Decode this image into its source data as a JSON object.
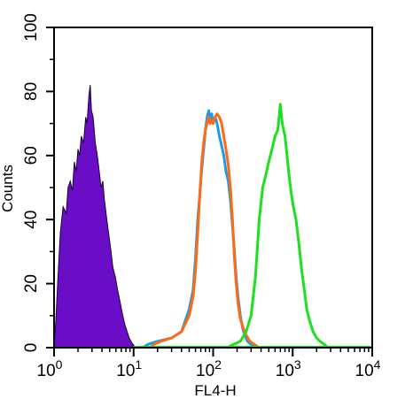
{
  "chart_data": {
    "type": "histogram",
    "x_scale": "log",
    "xlim": [
      1,
      10000
    ],
    "ylim": [
      0,
      100
    ],
    "xlabel": "FL4-H",
    "ylabel": "Counts",
    "x_ticks": [
      {
        "value": 1,
        "base": "10",
        "exp": "0"
      },
      {
        "value": 10,
        "base": "10",
        "exp": "1"
      },
      {
        "value": 100,
        "base": "10",
        "exp": "2"
      },
      {
        "value": 1000,
        "base": "10",
        "exp": "3"
      },
      {
        "value": 10000,
        "base": "10",
        "exp": "4"
      }
    ],
    "y_ticks": [
      {
        "value": 0,
        "label": "0"
      },
      {
        "value": 20,
        "label": "20"
      },
      {
        "value": 40,
        "label": "40"
      },
      {
        "value": 60,
        "label": "60"
      },
      {
        "value": 80,
        "label": "80"
      },
      {
        "value": 100,
        "label": "100"
      }
    ],
    "grid": false,
    "legend": "none",
    "series": [
      {
        "color": "#6a0dc7",
        "fill": true,
        "points": [
          [
            1.0,
            0
          ],
          [
            1.05,
            8
          ],
          [
            1.12,
            22
          ],
          [
            1.2,
            36
          ],
          [
            1.3,
            44
          ],
          [
            1.42,
            42
          ],
          [
            1.5,
            50
          ],
          [
            1.6,
            52
          ],
          [
            1.7,
            49
          ],
          [
            1.8,
            58
          ],
          [
            1.9,
            55
          ],
          [
            2.0,
            62
          ],
          [
            2.1,
            60
          ],
          [
            2.2,
            66
          ],
          [
            2.35,
            64
          ],
          [
            2.5,
            72
          ],
          [
            2.6,
            70
          ],
          [
            2.75,
            79
          ],
          [
            2.85,
            82
          ],
          [
            2.95,
            74
          ],
          [
            3.1,
            72
          ],
          [
            3.3,
            64
          ],
          [
            3.5,
            60
          ],
          [
            3.7,
            55
          ],
          [
            3.9,
            50
          ],
          [
            4.1,
            52
          ],
          [
            4.3,
            46
          ],
          [
            4.6,
            40
          ],
          [
            4.9,
            35
          ],
          [
            5.2,
            30
          ],
          [
            5.5,
            25
          ],
          [
            5.9,
            22
          ],
          [
            6.3,
            18
          ],
          [
            6.8,
            14
          ],
          [
            7.3,
            10
          ],
          [
            7.8,
            7
          ],
          [
            8.3,
            5
          ],
          [
            8.8,
            3
          ],
          [
            9.5,
            1.5
          ],
          [
            10.2,
            0.5
          ],
          [
            11,
            0
          ]
        ]
      },
      {
        "color": "#1e9be6",
        "fill": false,
        "points": [
          [
            13,
            0
          ],
          [
            15,
            1
          ],
          [
            20,
            2
          ],
          [
            30,
            3
          ],
          [
            40,
            5
          ],
          [
            50,
            12
          ],
          [
            56,
            18
          ],
          [
            60,
            28
          ],
          [
            64,
            40
          ],
          [
            68,
            48
          ],
          [
            72,
            56
          ],
          [
            76,
            62
          ],
          [
            80,
            68
          ],
          [
            84,
            72
          ],
          [
            88,
            74
          ],
          [
            92,
            71
          ],
          [
            96,
            73
          ],
          [
            100,
            70
          ],
          [
            106,
            72
          ],
          [
            112,
            70
          ],
          [
            120,
            66
          ],
          [
            128,
            63
          ],
          [
            136,
            60
          ],
          [
            145,
            55
          ],
          [
            155,
            52
          ],
          [
            165,
            46
          ],
          [
            175,
            38
          ],
          [
            185,
            30
          ],
          [
            195,
            22
          ],
          [
            205,
            16
          ],
          [
            220,
            10
          ],
          [
            235,
            6
          ],
          [
            250,
            4
          ],
          [
            270,
            2
          ],
          [
            300,
            1
          ],
          [
            350,
            0
          ]
        ]
      },
      {
        "color": "#ff6a14",
        "fill": false,
        "points": [
          [
            16,
            0
          ],
          [
            18,
            1
          ],
          [
            22,
            2
          ],
          [
            30,
            3
          ],
          [
            40,
            5
          ],
          [
            50,
            10
          ],
          [
            56,
            16
          ],
          [
            60,
            24
          ],
          [
            64,
            36
          ],
          [
            68,
            48
          ],
          [
            72,
            58
          ],
          [
            76,
            64
          ],
          [
            80,
            68
          ],
          [
            84,
            70
          ],
          [
            88,
            72
          ],
          [
            92,
            70
          ],
          [
            96,
            71
          ],
          [
            100,
            70
          ],
          [
            106,
            72
          ],
          [
            112,
            73
          ],
          [
            120,
            72
          ],
          [
            128,
            70
          ],
          [
            136,
            66
          ],
          [
            145,
            62
          ],
          [
            155,
            57
          ],
          [
            165,
            50
          ],
          [
            175,
            40
          ],
          [
            185,
            28
          ],
          [
            195,
            20
          ],
          [
            205,
            14
          ],
          [
            220,
            9
          ],
          [
            240,
            6
          ],
          [
            260,
            4
          ],
          [
            290,
            2
          ],
          [
            330,
            1
          ],
          [
            380,
            0
          ]
        ]
      },
      {
        "color": "#1fe01f",
        "fill": false,
        "points": [
          [
            150,
            0
          ],
          [
            180,
            1
          ],
          [
            220,
            2
          ],
          [
            260,
            5
          ],
          [
            300,
            10
          ],
          [
            340,
            22
          ],
          [
            380,
            40
          ],
          [
            420,
            50
          ],
          [
            460,
            54
          ],
          [
            500,
            58
          ],
          [
            550,
            62
          ],
          [
            600,
            66
          ],
          [
            650,
            68
          ],
          [
            700,
            76
          ],
          [
            740,
            70
          ],
          [
            800,
            66
          ],
          [
            850,
            60
          ],
          [
            900,
            54
          ],
          [
            960,
            48
          ],
          [
            1020,
            44
          ],
          [
            1100,
            40
          ],
          [
            1200,
            32
          ],
          [
            1300,
            24
          ],
          [
            1400,
            18
          ],
          [
            1500,
            12
          ],
          [
            1650,
            8
          ],
          [
            1800,
            5
          ],
          [
            2000,
            3
          ],
          [
            2200,
            2
          ],
          [
            2500,
            1
          ],
          [
            2800,
            0
          ]
        ]
      }
    ]
  }
}
